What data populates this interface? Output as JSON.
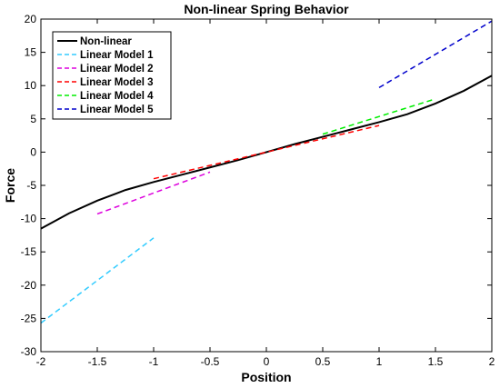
{
  "chart_data": {
    "type": "line",
    "title": "Non-linear Spring Behavior",
    "xlabel": "Position",
    "ylabel": "Force",
    "xlim": [
      -2,
      2
    ],
    "ylim": [
      -30,
      20
    ],
    "xticks": [
      -2,
      -1.5,
      -1,
      -0.5,
      0,
      0.5,
      1,
      1.5,
      2
    ],
    "yticks": [
      -30,
      -25,
      -20,
      -15,
      -10,
      -5,
      0,
      5,
      10,
      15,
      20
    ],
    "grid": false,
    "legend_position": "top-left",
    "series": [
      {
        "name": "Non-linear",
        "color": "#000000",
        "dash": "solid",
        "x": [
          -2,
          -1.75,
          -1.5,
          -1.25,
          -1,
          -0.75,
          -0.5,
          -0.25,
          0,
          0.25,
          0.5,
          0.75,
          1,
          1.25,
          1.5,
          1.75,
          2
        ],
        "y": [
          -11.5,
          -9.2,
          -7.3,
          -5.7,
          -4.5,
          -3.4,
          -2.3,
          -1.2,
          0,
          1.2,
          2.3,
          3.4,
          4.5,
          5.7,
          7.3,
          9.2,
          11.5
        ]
      },
      {
        "name": "Linear Model 1",
        "color": "#33ccff",
        "dash": "dashed",
        "x": [
          -2,
          -1
        ],
        "y": [
          -25.7,
          -12.9
        ]
      },
      {
        "name": "Linear Model 2",
        "color": "#dd00dd",
        "dash": "dashed",
        "x": [
          -1.5,
          -0.5
        ],
        "y": [
          -9.3,
          -3.0
        ]
      },
      {
        "name": "Linear Model 3",
        "color": "#ff0000",
        "dash": "dashed",
        "x": [
          -1,
          1
        ],
        "y": [
          -4.0,
          4.0
        ]
      },
      {
        "name": "Linear Model 4",
        "color": "#00ee00",
        "dash": "dashed",
        "x": [
          0.5,
          1.5
        ],
        "y": [
          2.7,
          8.0
        ]
      },
      {
        "name": "Linear Model 5",
        "color": "#0000cc",
        "dash": "dashed",
        "x": [
          1,
          2
        ],
        "y": [
          9.7,
          19.7
        ]
      }
    ]
  }
}
